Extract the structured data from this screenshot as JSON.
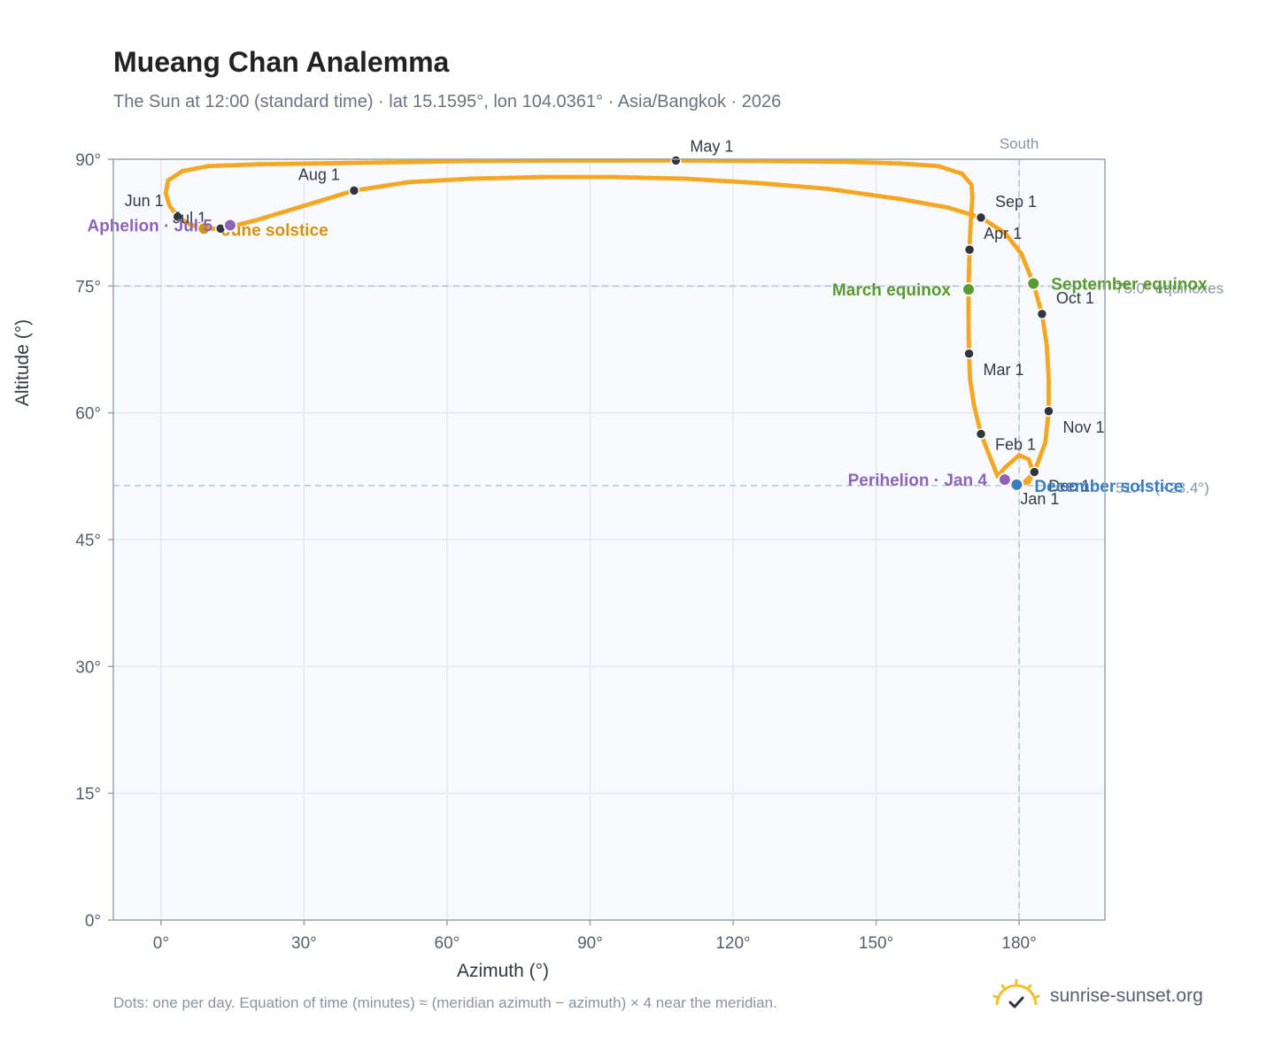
{
  "header": {
    "title": "Mueang Chan Analemma",
    "subtitle": "The Sun at 12:00 (standard time) · lat 15.1595°, lon 104.0361° · Asia/Bangkok · 2026"
  },
  "footer": {
    "note": "Dots: one per day. Equation of time (minutes) ≈ (meridian azimuth − azimuth) × 4 near the meridian.",
    "brand": "sunrise-sunset.org"
  },
  "colors": {
    "path": "#f5a623",
    "month_marker": "#2f3640",
    "equinox": "#5a9a32",
    "june_solstice": "#d4930f",
    "december_solstice": "#3a7cc0",
    "apsis": "#8e64b8",
    "grid": "#e5e9ef",
    "plot_bg": "#f8fbfd",
    "axis": "#9aa3ae",
    "reference": "#b8c2ce"
  },
  "chart_data": {
    "type": "scatter",
    "title": "Mueang Chan Analemma",
    "xlabel": "Azimuth (°)",
    "ylabel": "Altitude (°)",
    "xlim": [
      -10,
      198
    ],
    "ylim": [
      0,
      90
    ],
    "x_ticks": [
      0,
      30,
      60,
      90,
      120,
      150,
      180
    ],
    "x_tick_labels": [
      "0°",
      "30°",
      "60°",
      "90°",
      "120°",
      "150°",
      "180°"
    ],
    "y_ticks": [
      0,
      15,
      30,
      45,
      60,
      75,
      90
    ],
    "y_tick_labels": [
      "0°",
      "15°",
      "30°",
      "45°",
      "60°",
      "75°",
      "90°"
    ],
    "grid": true,
    "reference_lines": [
      {
        "orientation": "vertical",
        "value": 180,
        "label": "South"
      },
      {
        "orientation": "horizontal",
        "value": 75.0,
        "label": "75.0° equinoxes"
      },
      {
        "orientation": "horizontal",
        "value": 51.4,
        "label": "51.4° (−23.4°)"
      }
    ],
    "path_points": [
      [
        179.5,
        51.5
      ],
      [
        182.0,
        51.8
      ],
      [
        183.0,
        53.0
      ],
      [
        182.0,
        54.5
      ],
      [
        180.0,
        55.0
      ],
      [
        177.0,
        53.5
      ],
      [
        175.5,
        52.5
      ],
      [
        172.0,
        57.5
      ],
      [
        170.5,
        61.0
      ],
      [
        169.7,
        64.0
      ],
      [
        169.5,
        67.0
      ],
      [
        169.4,
        70.0
      ],
      [
        169.4,
        72.5
      ],
      [
        169.4,
        74.6
      ],
      [
        169.5,
        77.0
      ],
      [
        169.6,
        79.3
      ],
      [
        169.7,
        81.0
      ],
      [
        169.9,
        83.0
      ],
      [
        170.2,
        85.5
      ],
      [
        170.0,
        87.0
      ],
      [
        168.0,
        88.3
      ],
      [
        163.0,
        89.2
      ],
      [
        155.0,
        89.5
      ],
      [
        144.0,
        89.7
      ],
      [
        125.0,
        89.8
      ],
      [
        108.0,
        89.85
      ],
      [
        88.0,
        89.85
      ],
      [
        65.0,
        89.8
      ],
      [
        44.0,
        89.6
      ],
      [
        20.0,
        89.4
      ],
      [
        10.0,
        89.2
      ],
      [
        4.5,
        88.6
      ],
      [
        1.5,
        87.5
      ],
      [
        1.0,
        86.0
      ],
      [
        1.8,
        84.5
      ],
      [
        3.5,
        83.2
      ],
      [
        6.0,
        82.3
      ],
      [
        9.0,
        81.8
      ],
      [
        13.0,
        81.8
      ],
      [
        20.0,
        82.8
      ],
      [
        30.0,
        84.5
      ],
      [
        40.5,
        86.3
      ],
      [
        52.0,
        87.3
      ],
      [
        65.0,
        87.7
      ],
      [
        80.0,
        87.9
      ],
      [
        95.0,
        87.9
      ],
      [
        110.0,
        87.7
      ],
      [
        125.0,
        87.2
      ],
      [
        140.0,
        86.5
      ],
      [
        155.0,
        85.3
      ],
      [
        165.0,
        84.3
      ],
      [
        172.0,
        83.1
      ],
      [
        177.0,
        81.3
      ],
      [
        180.5,
        78.8
      ],
      [
        183.0,
        75.3
      ],
      [
        184.8,
        71.7
      ],
      [
        185.8,
        68.0
      ],
      [
        186.2,
        64.0
      ],
      [
        186.2,
        60.2
      ],
      [
        185.5,
        56.5
      ],
      [
        183.2,
        53.0
      ],
      [
        181.0,
        51.7
      ],
      [
        179.5,
        51.5
      ]
    ],
    "month_markers": [
      {
        "label": "Jan 1",
        "az": 179.5,
        "alt": 51.5
      },
      {
        "label": "Feb 1",
        "az": 172.0,
        "alt": 57.5
      },
      {
        "label": "Mar 1",
        "az": 169.5,
        "alt": 67.0
      },
      {
        "label": "Apr 1",
        "az": 169.6,
        "alt": 79.3
      },
      {
        "label": "May 1",
        "az": 108.0,
        "alt": 89.85
      },
      {
        "label": "Jun 1",
        "az": 3.5,
        "alt": 83.2
      },
      {
        "label": "Jul 1",
        "az": 12.5,
        "alt": 81.8
      },
      {
        "label": "Aug 1",
        "az": 40.5,
        "alt": 86.3
      },
      {
        "label": "Sep 1",
        "az": 172.0,
        "alt": 83.1
      },
      {
        "label": "Oct 1",
        "az": 184.8,
        "alt": 71.7
      },
      {
        "label": "Nov 1",
        "az": 186.2,
        "alt": 60.2
      },
      {
        "label": "Dec 1",
        "az": 183.2,
        "alt": 53.0
      }
    ],
    "events": [
      {
        "label": "March equinox",
        "az": 169.4,
        "alt": 74.6,
        "color_key": "equinox"
      },
      {
        "label": "September equinox",
        "az": 183.0,
        "alt": 75.3,
        "color_key": "equinox"
      },
      {
        "label": "June solstice",
        "az": 9.0,
        "alt": 81.8,
        "color_key": "june_solstice"
      },
      {
        "label": "December solstice",
        "az": 179.5,
        "alt": 51.5,
        "color_key": "december_solstice"
      },
      {
        "label": "Perihelion · Jan 4",
        "az": 177.0,
        "alt": 52.1,
        "color_key": "apsis"
      },
      {
        "label": "Aphelion · Jul 5",
        "az": 14.5,
        "alt": 82.2,
        "color_key": "apsis"
      }
    ]
  }
}
